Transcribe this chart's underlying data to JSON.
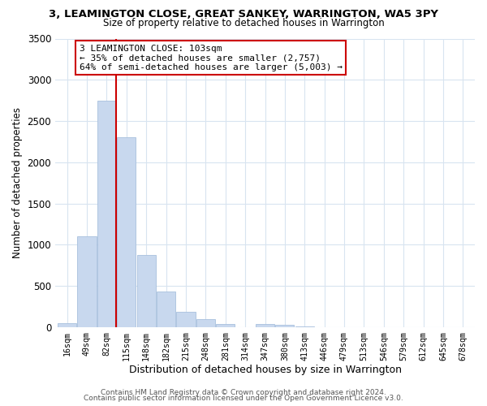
{
  "title_line1": "3, LEAMINGTON CLOSE, GREAT SANKEY, WARRINGTON, WA5 3PY",
  "title_line2": "Size of property relative to detached houses in Warrington",
  "xlabel": "Distribution of detached houses by size in Warrington",
  "ylabel": "Number of detached properties",
  "bar_labels": [
    "16sqm",
    "49sqm",
    "82sqm",
    "115sqm",
    "148sqm",
    "182sqm",
    "215sqm",
    "248sqm",
    "281sqm",
    "314sqm",
    "347sqm",
    "380sqm",
    "413sqm",
    "446sqm",
    "479sqm",
    "513sqm",
    "546sqm",
    "579sqm",
    "612sqm",
    "645sqm",
    "678sqm"
  ],
  "bar_values": [
    50,
    1100,
    2750,
    2300,
    875,
    430,
    185,
    95,
    45,
    0,
    45,
    30,
    10,
    0,
    0,
    0,
    0,
    0,
    0,
    0,
    0
  ],
  "bar_color": "#c8d8ee",
  "bar_edge_color": "#a8c0de",
  "vline_x": 2.48,
  "vline_color": "#cc0000",
  "annotation_line1": "3 LEAMINGTON CLOSE: 103sqm",
  "annotation_line2": "← 35% of detached houses are smaller (2,757)",
  "annotation_line3": "64% of semi-detached houses are larger (5,003) →",
  "annotation_box_color": "#ffffff",
  "annotation_box_edge": "#cc0000",
  "ylim": [
    0,
    3500
  ],
  "yticks": [
    0,
    500,
    1000,
    1500,
    2000,
    2500,
    3000,
    3500
  ],
  "footer_line1": "Contains HM Land Registry data © Crown copyright and database right 2024.",
  "footer_line2": "Contains public sector information licensed under the Open Government Licence v3.0.",
  "background_color": "#ffffff",
  "grid_color": "#d8e4f0"
}
